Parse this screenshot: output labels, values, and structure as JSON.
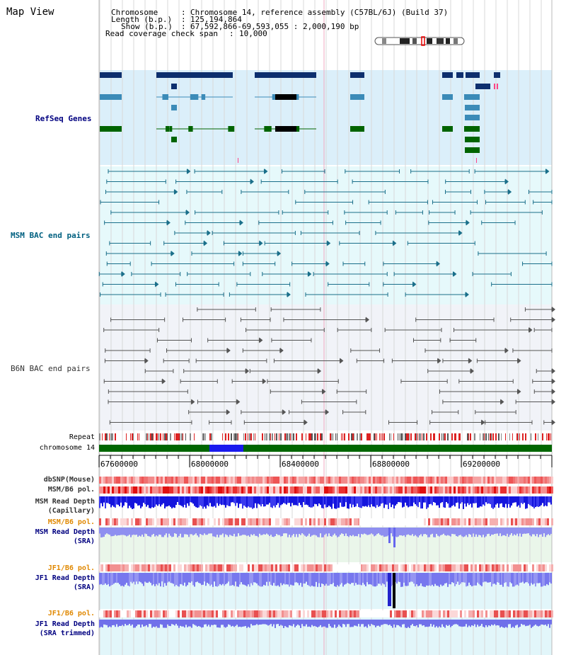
{
  "app": {
    "title": "Map View"
  },
  "info": {
    "chromosome_key": "Chromosome",
    "chromosome_val": "Chromosome 14, reference assembly (C57BL/6J) (Build 37)",
    "length_key": "Length (b.p.)",
    "length_val": "125,194,864",
    "show_key": "Show (b.p.)",
    "show_val": "67,592,866-69,593,055 : 2,000,190 bp",
    "coverage_key": "Read coverage check span",
    "coverage_val": "10,000",
    "sep": ":"
  },
  "tracks": {
    "refseq": "RefSeq Genes",
    "msm_bac": "MSM BAC end pairs",
    "b6n_bac": "B6N BAC end pairs"
  },
  "side_labels": {
    "repeat": "Repeat",
    "chromosome": "chromosome 14",
    "dbsnp": "dbSNP(Mouse)",
    "msm_pol": "MSM/B6 pol.",
    "msm_depth_cap_1": "MSM Read Depth",
    "msm_depth_cap_2": "(Capillary)",
    "msm_pol_2": "MSM/B6 pol.",
    "msm_depth_sra_1": "MSM Read Depth",
    "msm_depth_sra_2": "(SRA)",
    "jf1_pol": "JF1/B6 pol.",
    "jf1_depth_sra_1": "JF1 Read Depth",
    "jf1_depth_sra_2": "(SRA)",
    "jf1_pol_2": "JF1/B6 pol.",
    "jf1_depth_trim_1": "JF1 Read Depth",
    "jf1_depth_trim_2": "(SRA trimmed)"
  },
  "axis": {
    "ticks": [
      "67600000",
      "68000000",
      "68400000",
      "68800000",
      "69200000"
    ]
  },
  "colors": {
    "refseq_bg": "#dbeffa",
    "msm_bg": "#e6f9fb",
    "b6n_bg": "#f1f3f8",
    "gene_dark": "#0d2f6e",
    "gene_mid": "#3b8bb8",
    "gene_green": "#006400",
    "bac_msm": "#1a6f8a",
    "bac_b6n": "#555555",
    "chrom_green": "#006600",
    "chrom_blue": "#1a1aee",
    "label_navy": "#000080",
    "label_teal": "#006080",
    "label_orange": "#e08800",
    "label_gray": "#333333"
  }
}
